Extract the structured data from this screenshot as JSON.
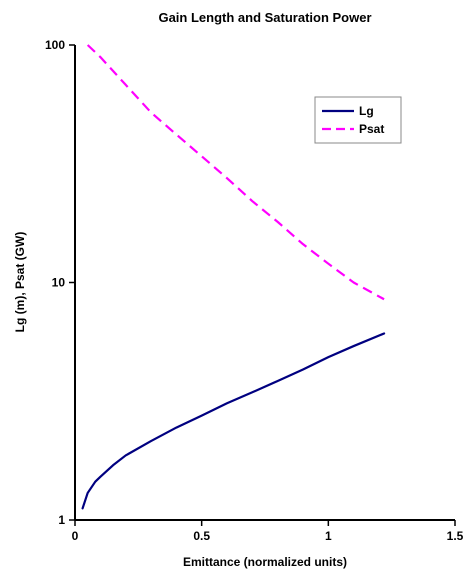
{
  "chart_data": {
    "type": "line",
    "title": "Gain Length and Saturation Power",
    "xlabel": "Emittance (normalized units)",
    "ylabel": "Lg (m), Psat (GW)",
    "xlim": [
      0,
      1.5
    ],
    "ylim": [
      1,
      100
    ],
    "yscale": "log",
    "grid": false,
    "legend_position": "top-right",
    "x_ticks": [
      "0",
      "0.5",
      "1",
      "1.5"
    ],
    "y_ticks": [
      "1",
      "10",
      "100"
    ],
    "series": [
      {
        "name": "Lg",
        "color": "#000080",
        "dash": "solid",
        "x": [
          0.03,
          0.05,
          0.08,
          0.1,
          0.15,
          0.2,
          0.3,
          0.4,
          0.5,
          0.6,
          0.7,
          0.8,
          0.9,
          1.0,
          1.1,
          1.22
        ],
        "y": [
          1.12,
          1.3,
          1.45,
          1.52,
          1.7,
          1.87,
          2.15,
          2.45,
          2.75,
          3.1,
          3.45,
          3.85,
          4.3,
          4.85,
          5.4,
          6.1
        ]
      },
      {
        "name": "Psat",
        "color": "#ff00ff",
        "dash": "dashed",
        "x": [
          0.05,
          0.1,
          0.2,
          0.3,
          0.4,
          0.5,
          0.6,
          0.7,
          0.8,
          0.9,
          1.0,
          1.1,
          1.22
        ],
        "y": [
          100,
          89,
          68,
          52,
          42,
          34,
          27.5,
          22,
          18,
          14.5,
          12,
          10,
          8.5
        ]
      }
    ]
  }
}
